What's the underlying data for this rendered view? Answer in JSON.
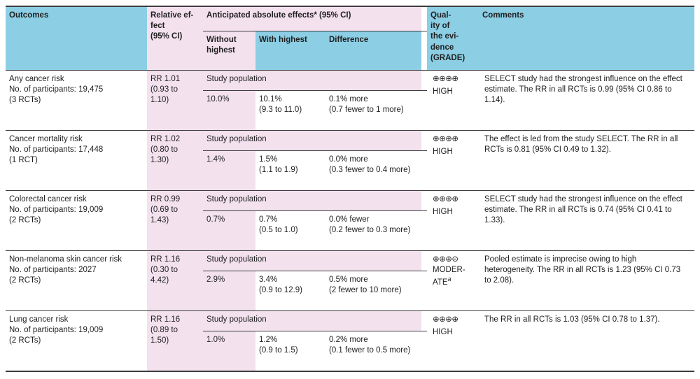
{
  "colors": {
    "header_blue": "#8CCEE4",
    "accent_pink": "#F3E1EE",
    "rule": "#3d3d3d",
    "text": "#1f1f1f"
  },
  "header": {
    "outcomes": "Outcomes",
    "relative_effect": "Relative ef-\nfect\n(95% CI)",
    "absolute_effects": "Anticipated absolute effects* (95% CI)",
    "without_highest": "Without\nhighest",
    "with_highest": "With highest",
    "difference": "Difference",
    "quality": "Qual-\nity of\nthe evi-\ndence\n(GRADE)",
    "comments": "Comments"
  },
  "rows": [
    {
      "outcome": "Any cancer risk\nNo. of participants: 19,475\n(3 RCTs)",
      "relative_effect": "RR 1.01\n(0.93 to\n1.10)",
      "group_label": "Study population",
      "without": "10.0%",
      "with": "10.1%\n(9.3 to 11.0)",
      "difference": "0.1% more\n(0.7 fewer to 1 more)",
      "grade_symbols": "⊕⊕⊕⊕",
      "grade_label": "HIGH",
      "grade_sup": "",
      "comment": "SELECT study had the strongest influence on the effect estimate. The RR in all RCTs is 0.99 (95% CI 0.86 to 1.14)."
    },
    {
      "outcome": "Cancer mortality risk\nNo. of participants: 17,448\n(1 RCT)",
      "relative_effect": "RR 1.02\n(0.80 to\n1.30)",
      "group_label": "Study population",
      "without": "1.4%",
      "with": "1.5%\n(1.1 to 1.9)",
      "difference": "0.0% more\n(0.3 fewer to 0.4 more)",
      "grade_symbols": "⊕⊕⊕⊕",
      "grade_label": "HIGH",
      "grade_sup": "",
      "comment": "The effect is led from the study SELECT. The RR in all RCTs is 0.81 (95% CI 0.49 to 1.32)."
    },
    {
      "outcome": "Colorectal cancer risk\nNo. of participants: 19,009\n(2 RCTs)",
      "relative_effect": "RR 0.99\n(0.69 to\n1.43)",
      "group_label": "Study population",
      "without": "0.7%",
      "with": "0.7%\n(0.5 to 1.0)",
      "difference": "0.0% fewer\n(0.2 fewer to 0.3 more)",
      "grade_symbols": "⊕⊕⊕⊕",
      "grade_label": "HIGH",
      "grade_sup": "",
      "comment": "SELECT study had the strongest influence on the effect estimate. The RR in all RCTs is 0.74 (95% CI 0.41 to 1.33)."
    },
    {
      "outcome": "Non-melanoma skin cancer risk\nNo. of participants: 2027\n(2 RCTs)",
      "relative_effect": "RR 1.16\n(0.30 to\n4.42)",
      "group_label": "Study population",
      "without": "2.9%",
      "with": "3.4%\n(0.9 to 12.9)",
      "difference": "0.5% more\n(2 fewer to 10 more)",
      "grade_symbols": "⊕⊕⊕⊝",
      "grade_label": "MODER-\nATE",
      "grade_sup": "a",
      "comment": "Pooled estimate is imprecise owing to high heterogeneity. The RR in all RCTs is 1.23 (95% CI 0.73 to 2.08)."
    },
    {
      "outcome": "Lung cancer risk\nNo. of participants: 19,009\n(2 RCTs)",
      "relative_effect": "RR 1.16\n(0.89 to\n1.50)",
      "group_label": "Study population",
      "without": "1.0%",
      "with": "1.2%\n(0.9 to 1.5)",
      "difference": "0.2% more\n(0.1 fewer to 0.5 more)",
      "grade_symbols": "⊕⊕⊕⊕",
      "grade_label": "HIGH",
      "grade_sup": "",
      "comment": "The RR in all RCTs is 1.03 (95% CI 0.78 to 1.37)."
    }
  ]
}
